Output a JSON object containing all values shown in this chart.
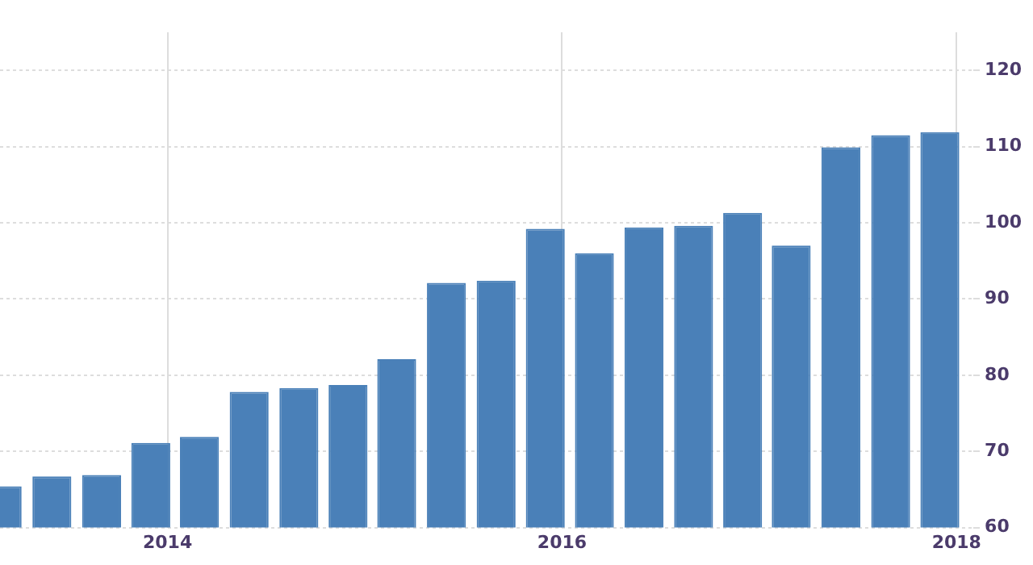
{
  "chart_data": {
    "type": "bar",
    "x": [
      "2013-03",
      "2013-06",
      "2013-09",
      "2013-12",
      "2014-03",
      "2014-06",
      "2014-09",
      "2014-12",
      "2015-03",
      "2015-06",
      "2015-09",
      "2015-12",
      "2016-03",
      "2016-06",
      "2016-09",
      "2016-12",
      "2017-03",
      "2017-06",
      "2017-09",
      "2017-12"
    ],
    "values": [
      65.4,
      66.7,
      66.9,
      71.1,
      71.9,
      77.8,
      78.3,
      78.7,
      82.1,
      92.1,
      92.4,
      99.2,
      96.0,
      99.4,
      99.6,
      101.3,
      97.0,
      109.9,
      111.5,
      111.9
    ],
    "color": "#4a80b8",
    "xlim": [
      "2013-02-25",
      "2018-02-01"
    ],
    "xticks": [
      "2014",
      "2016",
      "2018"
    ],
    "ylim": [
      60,
      125
    ],
    "yticks": [
      60,
      70,
      80,
      90,
      100,
      110,
      120
    ],
    "grid": true
  }
}
